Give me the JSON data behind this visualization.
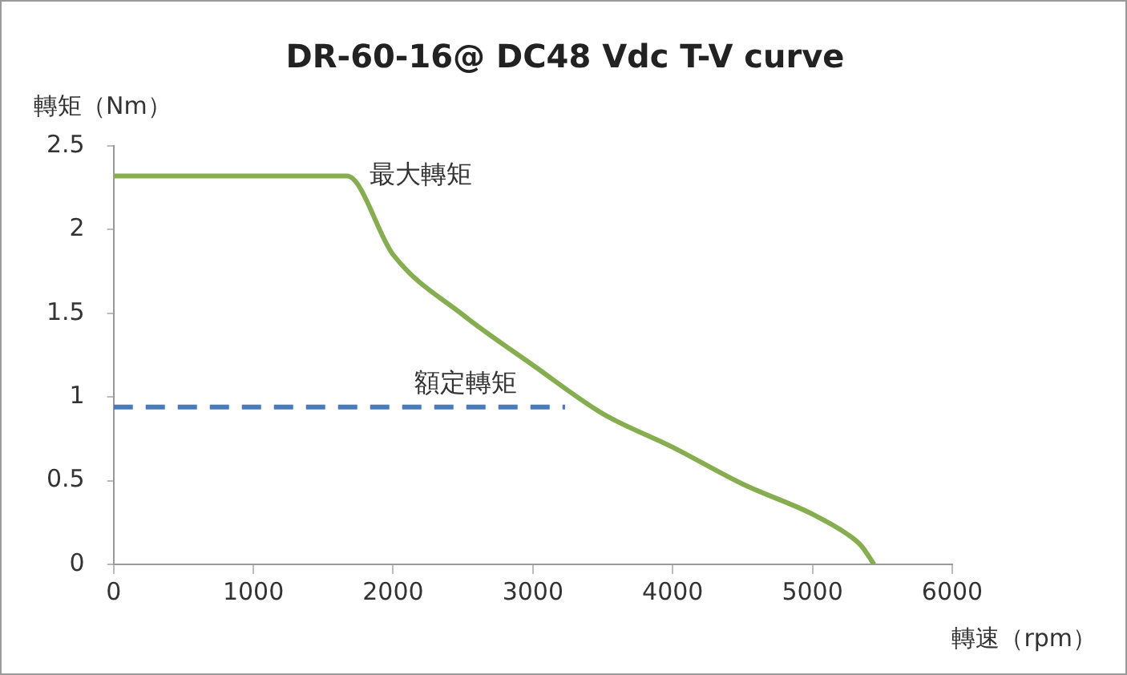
{
  "chart_data": {
    "type": "line",
    "title": "DR-60-16@ DC48 Vdc T-V curve",
    "xlabel": "轉速（rpm）",
    "ylabel": "轉矩（Nm）",
    "xlim": [
      0,
      6000
    ],
    "xticks": [
      0,
      1000,
      2000,
      3000,
      4000,
      5000,
      6000
    ],
    "ylim": [
      0,
      2.5
    ],
    "yticks": [
      0,
      0.5,
      1,
      1.5,
      2,
      2.5
    ],
    "grid": false,
    "legend": false,
    "marker": "none",
    "series": [
      {
        "name": "最大轉矩",
        "color": "#86ad4f",
        "line_style": "solid",
        "x": [
          0,
          1670,
          2000,
          2500,
          3000,
          3500,
          4000,
          4500,
          5000,
          5250,
          5350,
          5440
        ],
        "values": [
          2.32,
          2.32,
          1.85,
          1.49,
          1.19,
          0.9,
          0.7,
          0.48,
          0.3,
          0.18,
          0.11,
          0
        ]
      },
      {
        "name": "額定轉矩",
        "color": "#4a7ab8",
        "line_style": "dashed",
        "x": [
          0,
          3230
        ],
        "values": [
          0.94,
          0.94
        ]
      }
    ]
  }
}
